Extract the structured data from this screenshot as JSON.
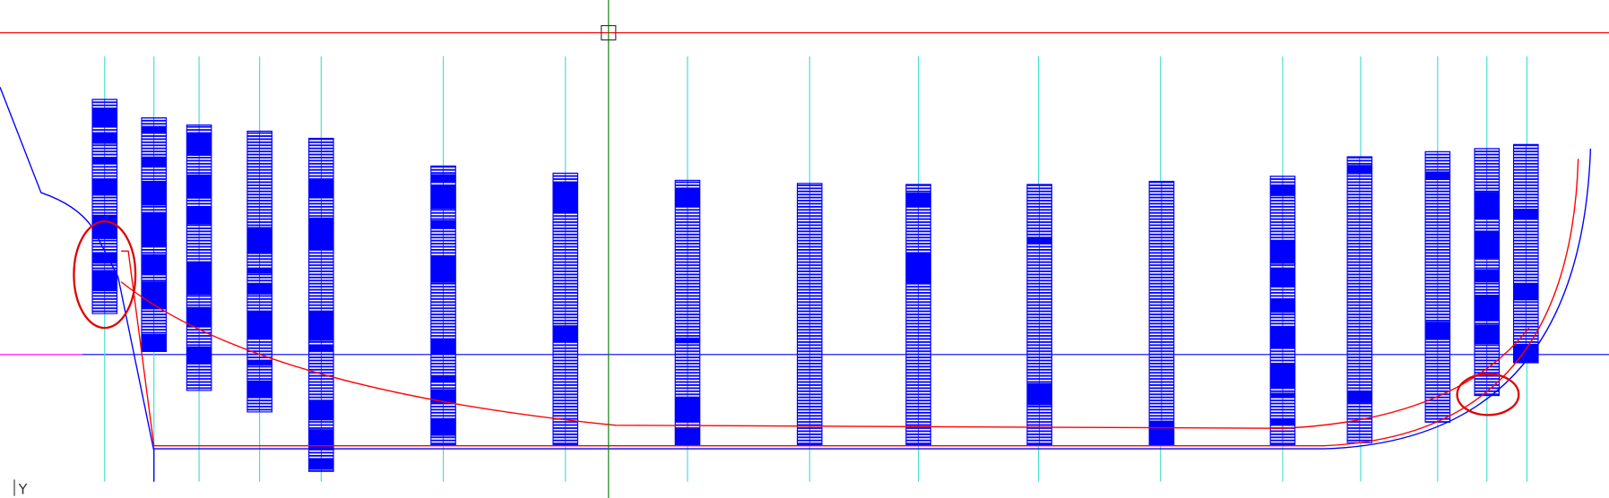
{
  "ui": {
    "axis_label": "Y"
  }
}
